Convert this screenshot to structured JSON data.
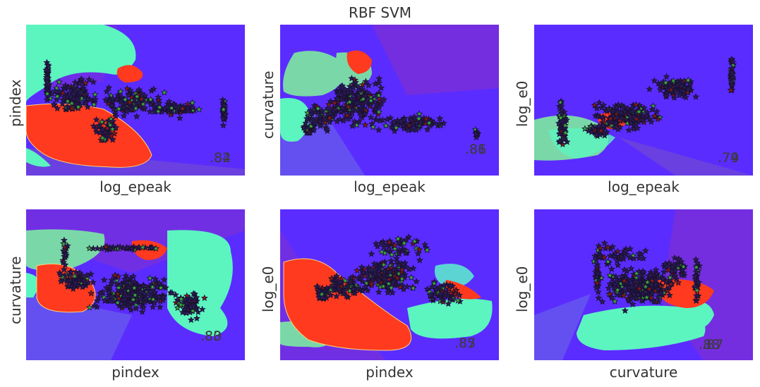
{
  "title": "RBF SVM",
  "colors": {
    "background_region": "#5b2cff",
    "region_red": "#ff3a1e",
    "region_cyan": "#5cf5c0",
    "region_teal": "#7ad8a8",
    "region_violet": "#7b30d8",
    "region_blue": "#6450f0",
    "marker_fill": "#2a1c55",
    "marker_green": "#3aaa3a",
    "marker_red": "#8b1a10",
    "score": "#3b3b3b"
  },
  "chart_data": [
    {
      "type": "scatter",
      "xlabel": "log_epeak",
      "ylabel": "pindex",
      "scores": [
        ".82",
        ".84"
      ],
      "grid": false,
      "series_marker": "star"
    },
    {
      "type": "scatter",
      "xlabel": "log_epeak",
      "ylabel": "curvature",
      "scores": [
        ".86",
        ".81"
      ],
      "grid": false,
      "series_marker": "star"
    },
    {
      "type": "scatter",
      "xlabel": "log_epeak",
      "ylabel": "log_e0",
      "scores": [
        ".74",
        ".79"
      ],
      "grid": false,
      "series_marker": "star"
    },
    {
      "type": "scatter",
      "xlabel": "pindex",
      "ylabel": "curvature",
      "scores": [
        ".80",
        ".83"
      ],
      "grid": false,
      "series_marker": "star"
    },
    {
      "type": "scatter",
      "xlabel": "pindex",
      "ylabel": "log_e0",
      "scores": [
        ".85",
        ".87"
      ],
      "grid": false,
      "series_marker": "star"
    },
    {
      "type": "scatter",
      "xlabel": "curvature",
      "ylabel": "log_e0",
      "scores": [
        ".88",
        ".87"
      ],
      "grid": false,
      "series_marker": "star"
    }
  ]
}
